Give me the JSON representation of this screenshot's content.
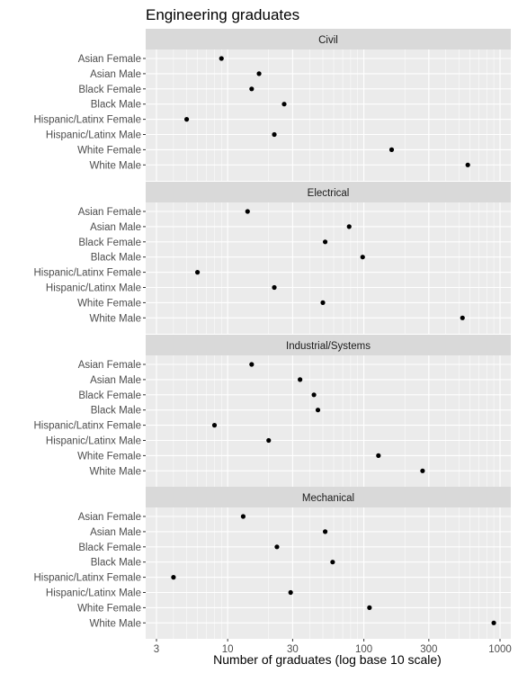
{
  "chart_data": {
    "type": "scatter",
    "title": "Engineering graduates",
    "xlabel": "Number of graduates (log base 10 scale)",
    "ylabel": "",
    "x_scale": "log10",
    "xlim": [
      2.5,
      1200
    ],
    "x_ticks": [
      3,
      10,
      30,
      100,
      300,
      1000
    ],
    "x_tick_labels": [
      "3",
      "10",
      "30",
      "100",
      "300",
      "1000"
    ],
    "grid": true,
    "legend": "none",
    "categories": [
      "Asian Female",
      "Asian Male",
      "Black Female",
      "Black Male",
      "Hispanic/Latinx Female",
      "Hispanic/Latinx Male",
      "White Female",
      "White Male"
    ],
    "facets": [
      {
        "name": "Civil",
        "values": [
          9,
          17,
          15,
          26,
          5,
          22,
          160,
          580
        ]
      },
      {
        "name": "Electrical",
        "values": [
          14,
          78,
          52,
          98,
          6,
          22,
          50,
          530
        ]
      },
      {
        "name": "Industrial/Systems",
        "values": [
          15,
          34,
          43,
          46,
          8,
          20,
          128,
          270
        ]
      },
      {
        "name": "Mechanical",
        "values": [
          13,
          52,
          23,
          59,
          4,
          29,
          110,
          900
        ]
      }
    ]
  }
}
